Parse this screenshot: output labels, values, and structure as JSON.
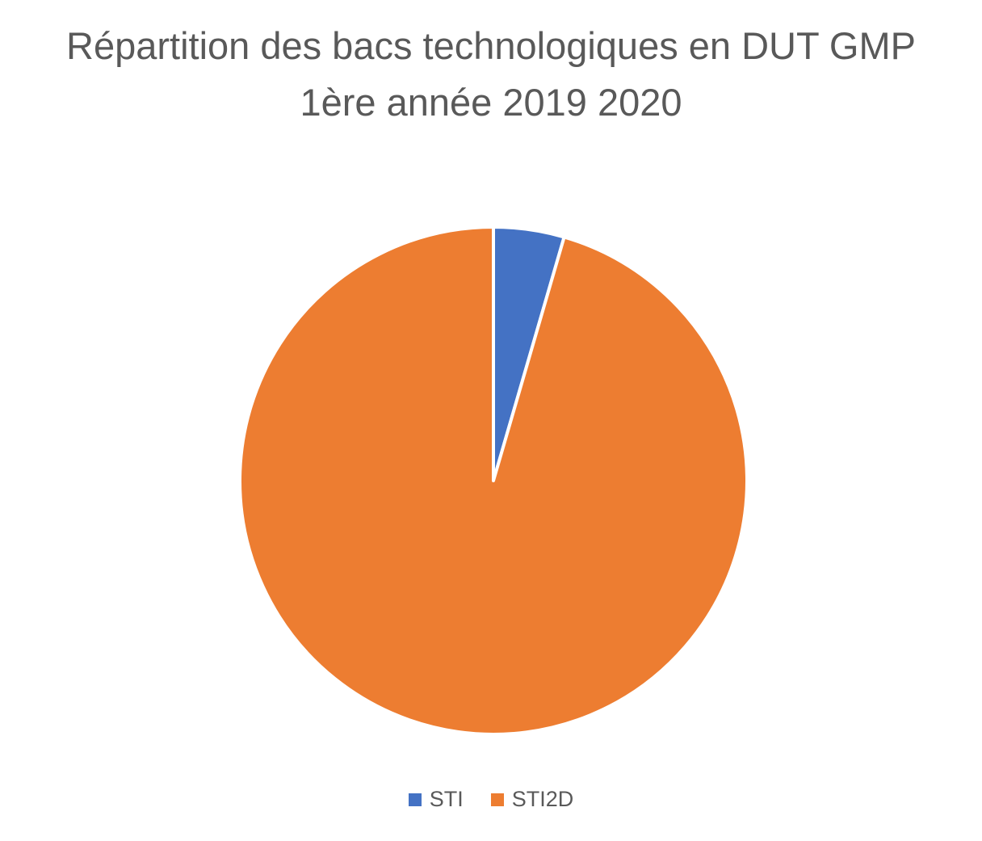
{
  "chart_data": {
    "type": "pie",
    "title_lines": [
      "Répartition des bacs technologiques en DUT GMP",
      "1ère année 2019 2020"
    ],
    "categories": [
      "STI",
      "STI2D"
    ],
    "values": [
      4.5,
      95.5
    ],
    "colors": [
      "#4472C4",
      "#ED7D31"
    ],
    "start_angle_deg": 0,
    "direction": "clockwise",
    "legend_position": "bottom",
    "data_labels": false
  }
}
